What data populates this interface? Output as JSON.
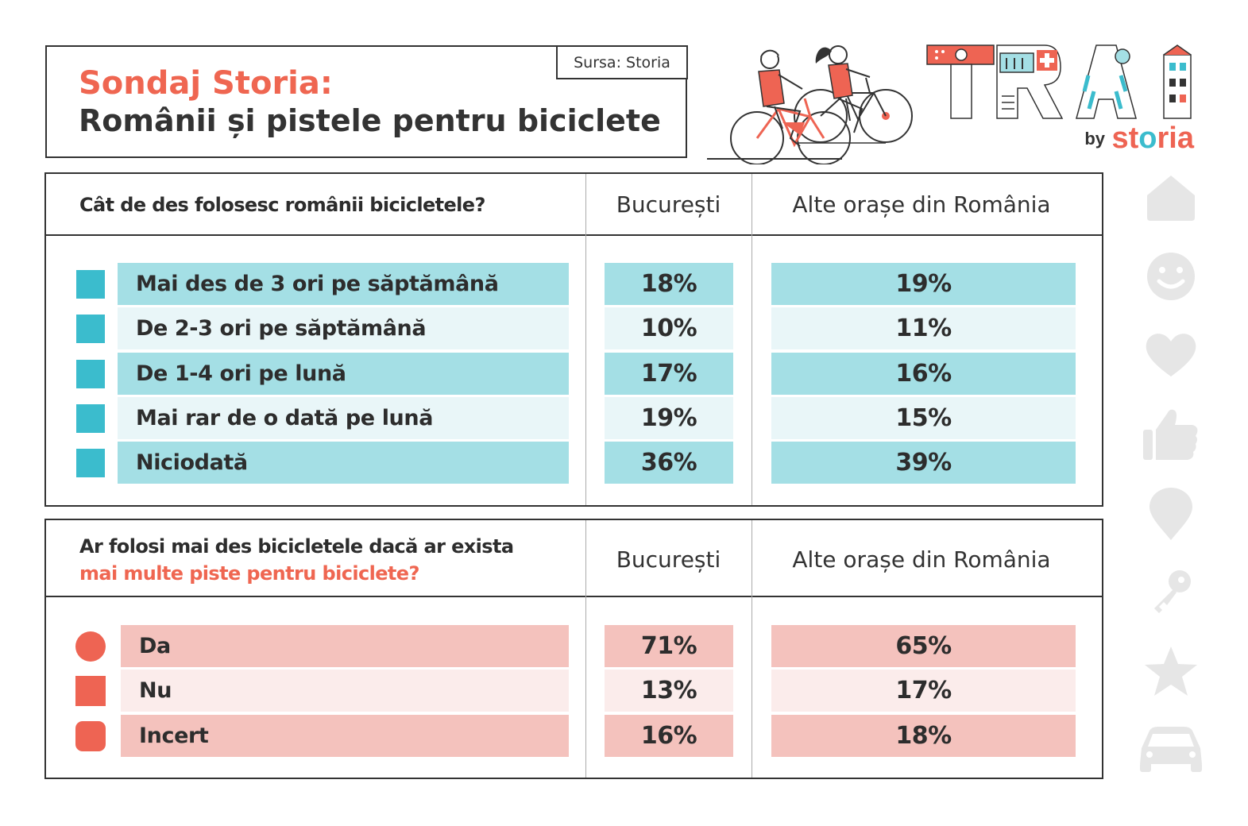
{
  "header": {
    "title_line1": "Sondaj Storia:",
    "title_line2": "Românii și pistele pentru biciclete",
    "source": "Sursa: Storia"
  },
  "logo": {
    "word": "TRAI",
    "by": "by",
    "brand": "storia",
    "brand_o": "o",
    "brand_st": "st",
    "brand_ria": "ria"
  },
  "table1": {
    "question": "Cât de des folosesc românii bicicletele?",
    "col_bucuresti": "București",
    "col_alte": "Alte orașe din România",
    "rows": [
      {
        "label": "Mai des de 3 ori pe săptămână",
        "bucuresti": "18%",
        "alte": "19%"
      },
      {
        "label": "De 2-3 ori pe săptămână",
        "bucuresti": "10%",
        "alte": "11%"
      },
      {
        "label": "De 1-4 ori pe lună",
        "bucuresti": "17%",
        "alte": "16%"
      },
      {
        "label": "Mai rar de o dată pe lună",
        "bucuresti": "19%",
        "alte": "15%"
      },
      {
        "label": "Niciodată",
        "bucuresti": "36%",
        "alte": "39%"
      }
    ]
  },
  "table2": {
    "question_line1": "Ar folosi mai des bicicletele dacă ar exista",
    "question_line2": "mai multe piste pentru biciclete?",
    "col_bucuresti": "București",
    "col_alte": "Alte orașe din România",
    "rows": [
      {
        "label": "Da",
        "bucuresti": "71%",
        "alte": "65%"
      },
      {
        "label": "Nu",
        "bucuresti": "13%",
        "alte": "17%"
      },
      {
        "label": "Incert",
        "bucuresti": "16%",
        "alte": "18%"
      }
    ]
  },
  "colors": {
    "accent_red": "#ef6651",
    "teal": "#3bbccd",
    "teal_row_dark": "#a4dfe5",
    "teal_row_light": "#e9f6f8",
    "pink_row_dark": "#f4c2bd",
    "pink_row_light": "#fbeceb",
    "side_icons": "#e6e6e6"
  },
  "side_icons": [
    "house-icon",
    "smiley-icon",
    "heart-icon",
    "thumbs-up-icon",
    "map-pin-icon",
    "key-icon",
    "star-icon",
    "car-icon"
  ]
}
